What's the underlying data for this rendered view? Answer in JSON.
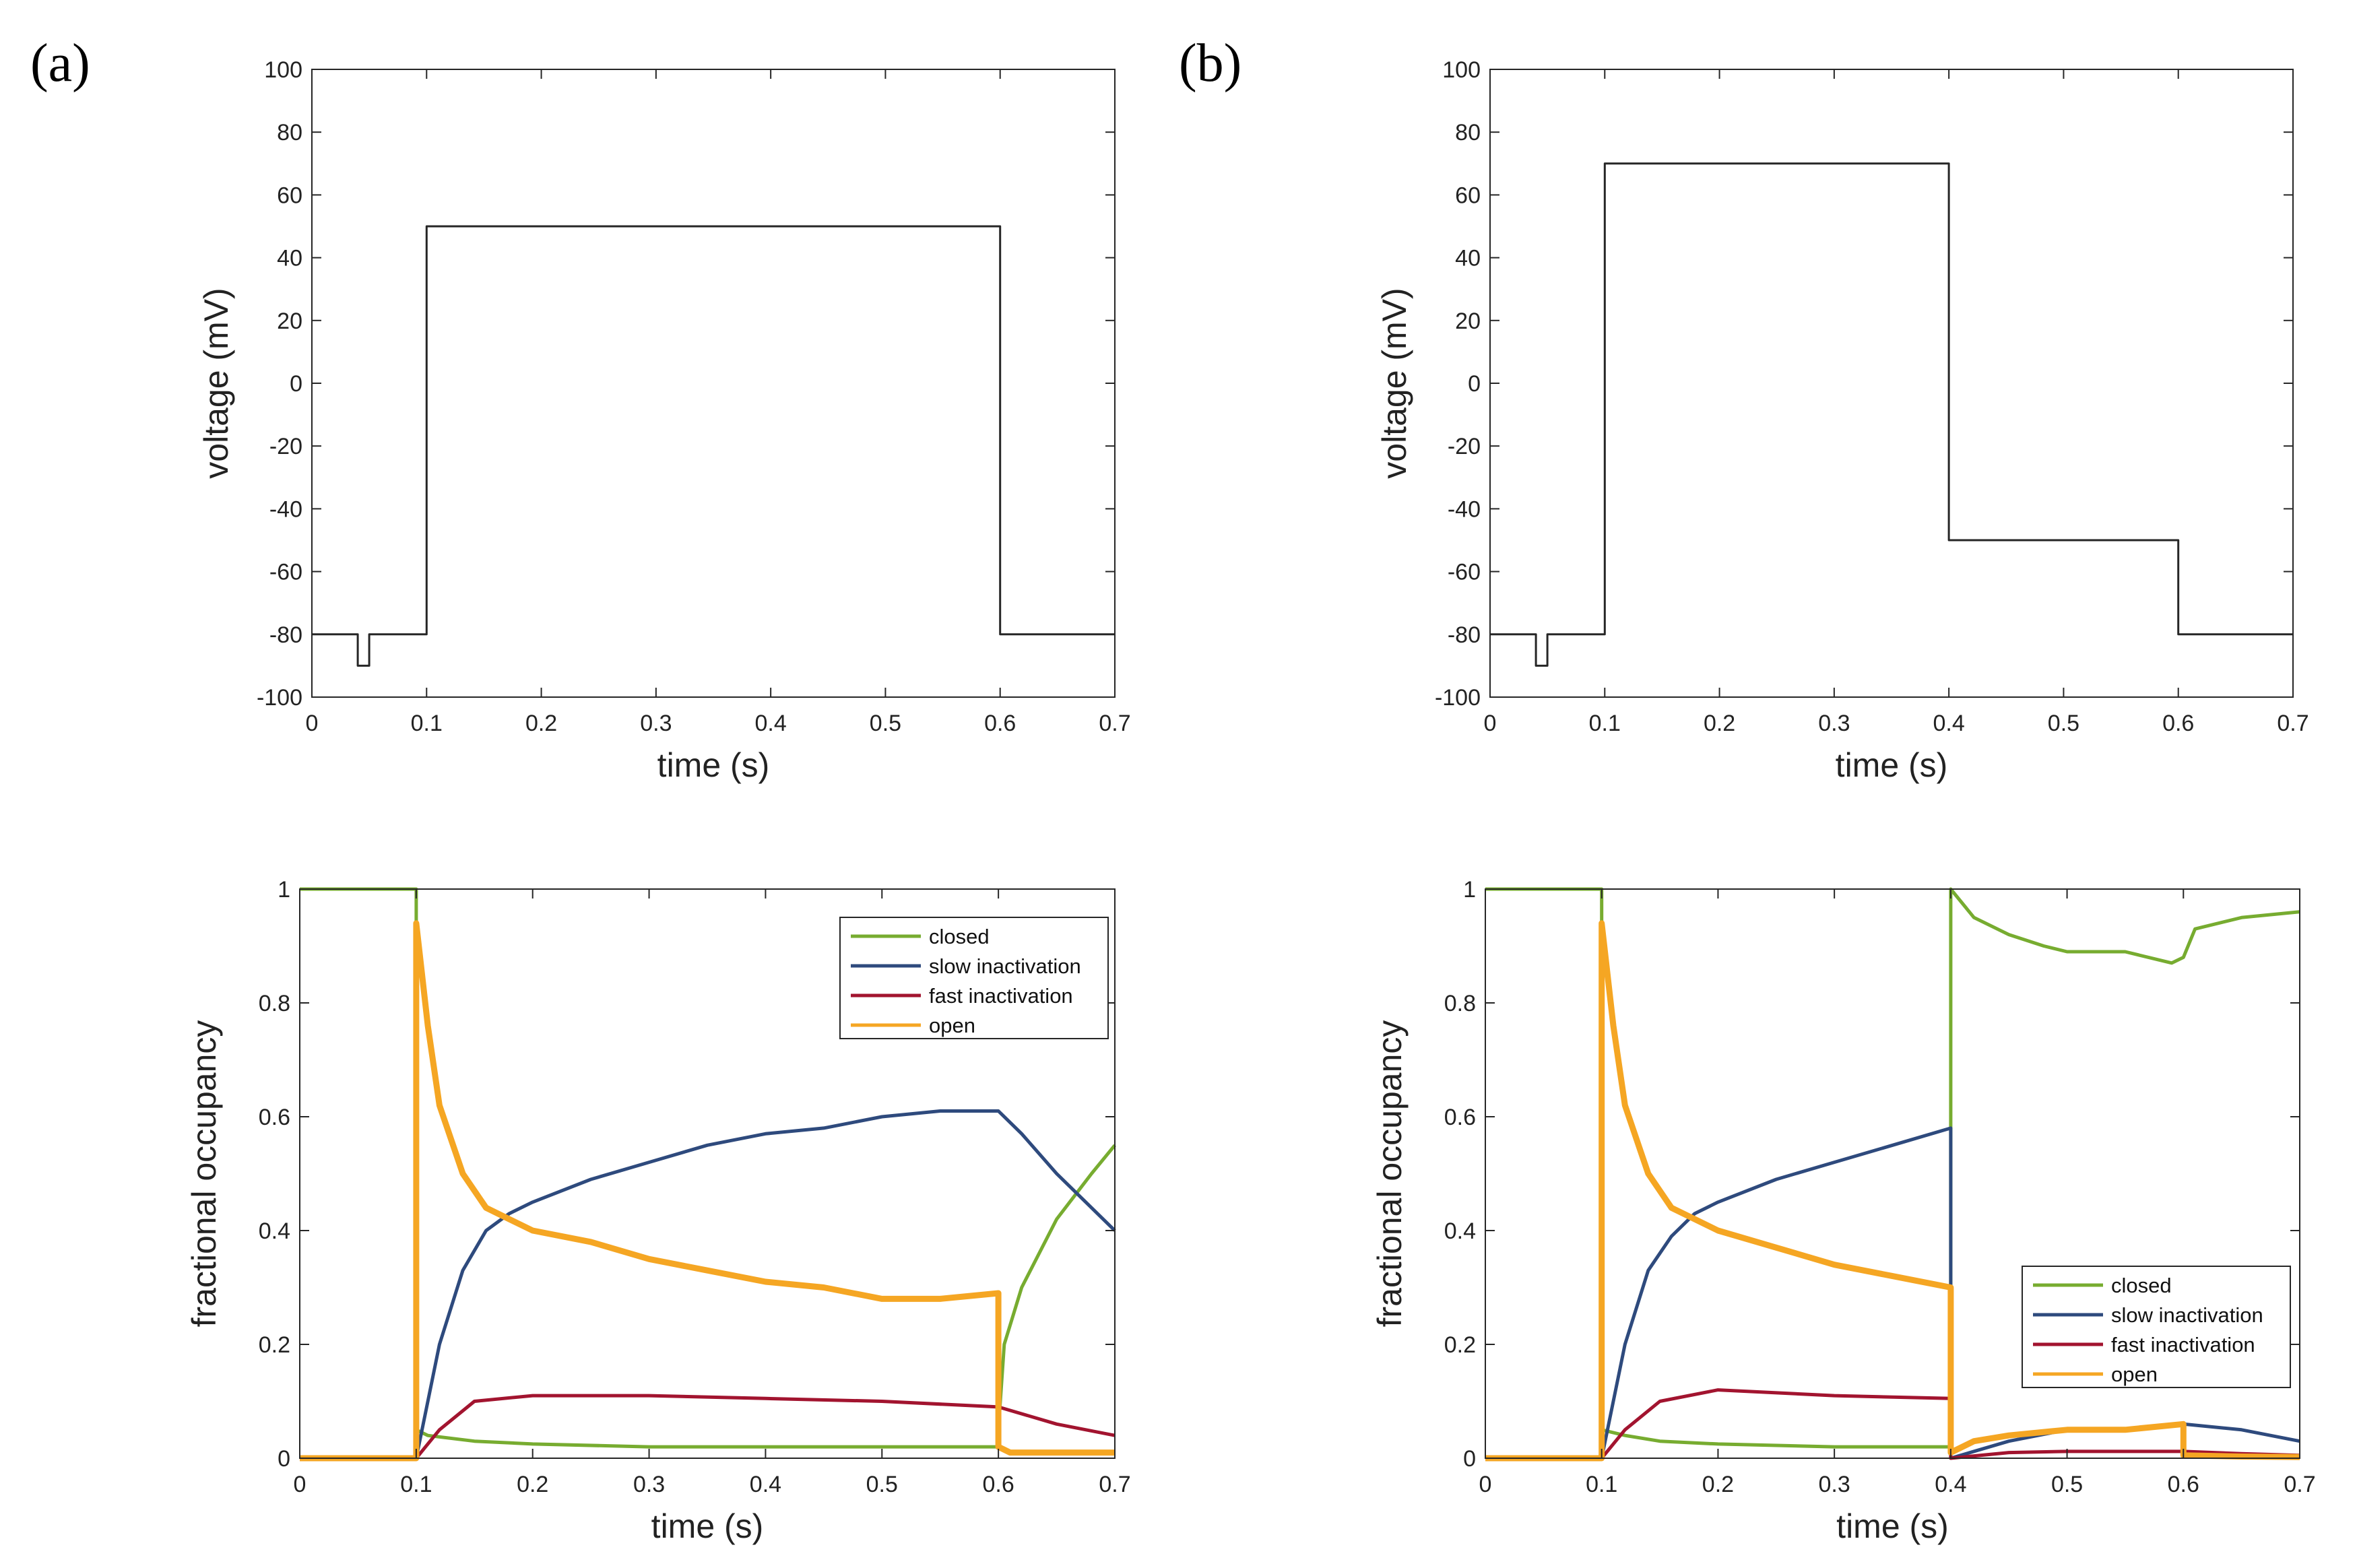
{
  "panels": [
    {
      "label": "(a)"
    },
    {
      "label": "(b)"
    }
  ],
  "chart_data": [
    {
      "panel": "(a)",
      "type": "line",
      "title": "",
      "xlabel": "time (s)",
      "ylabel": "voltage (mV)",
      "xlim": [
        0,
        0.7
      ],
      "ylim": [
        -100,
        100
      ],
      "xticks": [
        0,
        0.1,
        0.2,
        0.3,
        0.4,
        0.5,
        0.6,
        0.7
      ],
      "yticks": [
        -100,
        -80,
        -60,
        -40,
        -20,
        0,
        20,
        40,
        60,
        80,
        100
      ],
      "grid": false,
      "series": [
        {
          "color": "#262626",
          "x": [
            0,
            0.04,
            0.04,
            0.05,
            0.05,
            0.1,
            0.1,
            0.6,
            0.6,
            0.7
          ],
          "y": [
            -80,
            -80,
            -90,
            -90,
            -80,
            -80,
            50,
            50,
            -80,
            -80
          ]
        }
      ]
    },
    {
      "panel": "(b)",
      "type": "line",
      "title": "",
      "xlabel": "time (s)",
      "ylabel": "voltage (mV)",
      "xlim": [
        0,
        0.7
      ],
      "ylim": [
        -100,
        100
      ],
      "xticks": [
        0,
        0.1,
        0.2,
        0.3,
        0.4,
        0.5,
        0.6,
        0.7
      ],
      "yticks": [
        -100,
        -80,
        -60,
        -40,
        -20,
        0,
        20,
        40,
        60,
        80,
        100
      ],
      "grid": false,
      "series": [
        {
          "color": "#262626",
          "x": [
            0,
            0.04,
            0.04,
            0.05,
            0.05,
            0.1,
            0.1,
            0.4,
            0.4,
            0.6,
            0.6,
            0.7
          ],
          "y": [
            -80,
            -80,
            -90,
            -90,
            -80,
            -80,
            70,
            70,
            -50,
            -50,
            -80,
            -80
          ]
        }
      ]
    },
    {
      "panel": "(a)",
      "type": "line",
      "title": "",
      "xlabel": "time (s)",
      "ylabel": "fractional occupancy",
      "xlim": [
        0,
        0.7
      ],
      "ylim": [
        0,
        1
      ],
      "xticks": [
        0,
        0.1,
        0.2,
        0.3,
        0.4,
        0.5,
        0.6,
        0.7
      ],
      "yticks": [
        0,
        0.2,
        0.4,
        0.6,
        0.8,
        1
      ],
      "grid": false,
      "legend": "top-right",
      "series": [
        {
          "name": "closed",
          "color": "#77ac30",
          "x": [
            0,
            0.099,
            0.1,
            0.1,
            0.11,
            0.15,
            0.2,
            0.3,
            0.4,
            0.5,
            0.6,
            0.6,
            0.605,
            0.62,
            0.65,
            0.68,
            0.7
          ],
          "y": [
            1,
            1,
            1,
            0.05,
            0.04,
            0.03,
            0.025,
            0.02,
            0.02,
            0.02,
            0.02,
            0.05,
            0.2,
            0.3,
            0.42,
            0.5,
            0.55
          ]
        },
        {
          "name": "slow inactivation",
          "color": "#2e4a7d",
          "x": [
            0,
            0.1,
            0.12,
            0.14,
            0.16,
            0.18,
            0.2,
            0.25,
            0.3,
            0.35,
            0.4,
            0.45,
            0.5,
            0.55,
            0.6,
            0.62,
            0.65,
            0.7
          ],
          "y": [
            0,
            0,
            0.2,
            0.33,
            0.4,
            0.43,
            0.45,
            0.49,
            0.52,
            0.55,
            0.57,
            0.58,
            0.6,
            0.61,
            0.61,
            0.57,
            0.5,
            0.4
          ]
        },
        {
          "name": "fast inactivation",
          "color": "#a2142f",
          "x": [
            0,
            0.1,
            0.12,
            0.15,
            0.2,
            0.3,
            0.4,
            0.5,
            0.6,
            0.65,
            0.7
          ],
          "y": [
            0,
            0,
            0.05,
            0.1,
            0.11,
            0.11,
            0.105,
            0.1,
            0.09,
            0.06,
            0.04
          ]
        },
        {
          "name": "open",
          "color": "#f5a623",
          "x": [
            0,
            0.099,
            0.1,
            0.1,
            0.11,
            0.12,
            0.14,
            0.16,
            0.2,
            0.25,
            0.3,
            0.35,
            0.4,
            0.45,
            0.5,
            0.55,
            0.6,
            0.6,
            0.61,
            0.7
          ],
          "y": [
            0,
            0,
            0,
            0.94,
            0.76,
            0.62,
            0.5,
            0.44,
            0.4,
            0.38,
            0.35,
            0.33,
            0.31,
            0.3,
            0.28,
            0.28,
            0.29,
            0.02,
            0.01,
            0.01
          ]
        }
      ]
    },
    {
      "panel": "(b)",
      "type": "line",
      "title": "",
      "xlabel": "time (s)",
      "ylabel": "fractional occupancy",
      "xlim": [
        0,
        0.7
      ],
      "ylim": [
        0,
        1
      ],
      "xticks": [
        0,
        0.1,
        0.2,
        0.3,
        0.4,
        0.5,
        0.6,
        0.7
      ],
      "yticks": [
        0,
        0.2,
        0.4,
        0.6,
        0.8,
        1
      ],
      "grid": false,
      "legend": "bottom-right",
      "series": [
        {
          "name": "closed",
          "color": "#77ac30",
          "x": [
            0,
            0.099,
            0.1,
            0.1,
            0.12,
            0.15,
            0.2,
            0.3,
            0.4,
            0.4,
            0.42,
            0.45,
            0.48,
            0.5,
            0.55,
            0.59,
            0.6,
            0.61,
            0.65,
            0.7
          ],
          "y": [
            1,
            1,
            1,
            0.05,
            0.04,
            0.03,
            0.025,
            0.02,
            0.02,
            1,
            0.95,
            0.92,
            0.9,
            0.89,
            0.89,
            0.87,
            0.88,
            0.93,
            0.95,
            0.96
          ]
        },
        {
          "name": "slow inactivation",
          "color": "#2e4a7d",
          "x": [
            0,
            0.1,
            0.12,
            0.14,
            0.16,
            0.18,
            0.2,
            0.25,
            0.3,
            0.35,
            0.4,
            0.4,
            0.45,
            0.5,
            0.55,
            0.6,
            0.65,
            0.7
          ],
          "y": [
            0,
            0,
            0.2,
            0.33,
            0.39,
            0.43,
            0.45,
            0.49,
            0.52,
            0.55,
            0.58,
            0,
            0.03,
            0.05,
            0.05,
            0.06,
            0.05,
            0.03
          ]
        },
        {
          "name": "fast inactivation",
          "color": "#a2142f",
          "x": [
            0,
            0.1,
            0.12,
            0.15,
            0.2,
            0.3,
            0.4,
            0.4,
            0.45,
            0.5,
            0.55,
            0.6,
            0.65,
            0.7
          ],
          "y": [
            0,
            0,
            0.05,
            0.1,
            0.12,
            0.11,
            0.105,
            0,
            0.01,
            0.012,
            0.012,
            0.012,
            0.008,
            0.005
          ]
        },
        {
          "name": "open",
          "color": "#f5a623",
          "x": [
            0,
            0.099,
            0.1,
            0.1,
            0.11,
            0.12,
            0.14,
            0.16,
            0.2,
            0.25,
            0.3,
            0.35,
            0.4,
            0.4,
            0.42,
            0.45,
            0.5,
            0.55,
            0.6,
            0.6,
            0.65,
            0.7
          ],
          "y": [
            0,
            0,
            0,
            0.94,
            0.76,
            0.62,
            0.5,
            0.44,
            0.4,
            0.37,
            0.34,
            0.32,
            0.3,
            0.01,
            0.03,
            0.04,
            0.05,
            0.05,
            0.06,
            0.005,
            0.003,
            0.002
          ]
        }
      ]
    }
  ]
}
